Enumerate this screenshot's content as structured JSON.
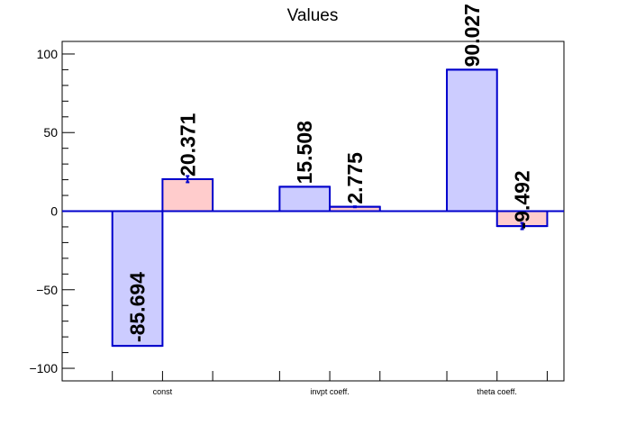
{
  "chart_data": {
    "type": "bar",
    "title": "Values",
    "categories": [
      "const",
      "invpt coeff.",
      "theta coeff."
    ],
    "ylim": [
      -108,
      108
    ],
    "yticks": [
      -100,
      -50,
      0,
      50,
      100
    ],
    "ytick_labels": [
      "−100",
      "−50",
      "0",
      "50",
      "100"
    ],
    "grid": false,
    "legend": "none",
    "series": [
      {
        "values": [
          -85.694,
          15.508,
          90.027
        ],
        "labels": [
          "-85.694",
          "15.508",
          "90.027"
        ],
        "fill": "#ccccff",
        "stroke": "#0000cc"
      },
      {
        "values": [
          20.371,
          2.775,
          -9.492
        ],
        "labels": [
          "20.371",
          "2.775",
          "-9.492"
        ],
        "errors": [
          2.0,
          0.3,
          2.0
        ],
        "fill": "#ffcccc",
        "stroke": "#0000cc"
      }
    ]
  }
}
